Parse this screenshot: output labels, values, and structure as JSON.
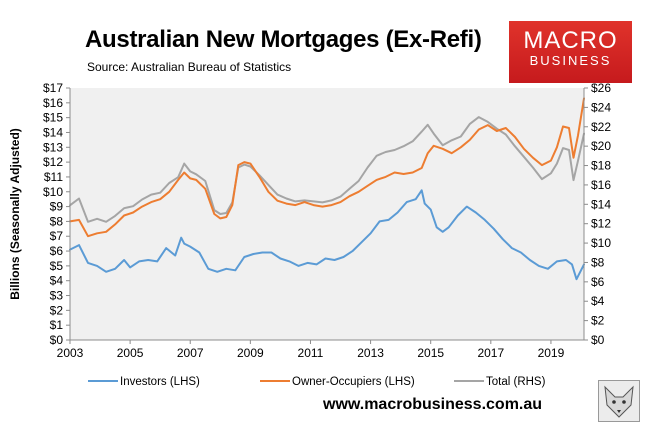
{
  "header": {
    "title": "Australian New Mortgages (Ex-Refi)",
    "subtitle": "Source: Australian Bureau of Statistics"
  },
  "logo": {
    "line1": "MACRO",
    "line2": "BUSINESS"
  },
  "footer": {
    "url": "www.macrobusiness.com.au"
  },
  "colors": {
    "investors": "#5b9bd5",
    "owner_occupiers": "#ed7d31",
    "total": "#a5a5a5",
    "plot_area": "#f0f0f0",
    "logo_red": "#d42a26"
  },
  "chart_data": {
    "type": "line",
    "title": "Australian New Mortgages (Ex-Refi)",
    "ylabel": "Billions (Seasonally Adjusted)",
    "xlim": [
      2003,
      2020.1
    ],
    "ylim_left": [
      0,
      17
    ],
    "ylim_right": [
      0,
      26
    ],
    "grid": false,
    "legend_position": "bottom",
    "x_ticks": [
      "2003",
      "2005",
      "2007",
      "2009",
      "2011",
      "2013",
      "2015",
      "2017",
      "2019"
    ],
    "left_ticks": [
      "$0",
      "$1",
      "$2",
      "$3",
      "$4",
      "$5",
      "$6",
      "$7",
      "$8",
      "$9",
      "$10",
      "$11",
      "$12",
      "$13",
      "$14",
      "$15",
      "$16",
      "$17"
    ],
    "right_ticks": [
      "$0",
      "$2",
      "$4",
      "$6",
      "$8",
      "$10",
      "$12",
      "$14",
      "$16",
      "$18",
      "$20",
      "$22",
      "$24",
      "$26"
    ],
    "series": [
      {
        "name": "Investors (LHS)",
        "axis": "left",
        "x": [
          2003.0,
          2003.3,
          2003.6,
          2003.9,
          2004.2,
          2004.5,
          2004.8,
          2005.0,
          2005.3,
          2005.6,
          2005.9,
          2006.2,
          2006.5,
          2006.7,
          2006.8,
          2007.0,
          2007.3,
          2007.6,
          2007.9,
          2008.2,
          2008.5,
          2008.8,
          2009.1,
          2009.4,
          2009.7,
          2010.0,
          2010.3,
          2010.6,
          2010.9,
          2011.2,
          2011.5,
          2011.8,
          2012.1,
          2012.4,
          2012.7,
          2013.0,
          2013.3,
          2013.6,
          2013.9,
          2014.2,
          2014.5,
          2014.7,
          2014.8,
          2015.0,
          2015.2,
          2015.4,
          2015.6,
          2015.9,
          2016.2,
          2016.5,
          2016.8,
          2017.1,
          2017.4,
          2017.7,
          2018.0,
          2018.3,
          2018.6,
          2018.9,
          2019.2,
          2019.5,
          2019.7,
          2019.85,
          2020.1
        ],
        "values": [
          6.1,
          6.4,
          5.2,
          5.0,
          4.6,
          4.8,
          5.4,
          4.9,
          5.3,
          5.4,
          5.3,
          6.2,
          5.7,
          6.9,
          6.5,
          6.3,
          5.9,
          4.8,
          4.6,
          4.8,
          4.7,
          5.6,
          5.8,
          5.9,
          5.9,
          5.5,
          5.3,
          5.0,
          5.2,
          5.1,
          5.5,
          5.4,
          5.6,
          6.0,
          6.6,
          7.2,
          8.0,
          8.1,
          8.6,
          9.3,
          9.5,
          10.1,
          9.2,
          8.8,
          7.6,
          7.3,
          7.6,
          8.4,
          9.0,
          8.6,
          8.1,
          7.5,
          6.8,
          6.2,
          5.9,
          5.4,
          5.0,
          4.8,
          5.3,
          5.4,
          5.1,
          4.1,
          5.1
        ]
      },
      {
        "name": "Owner-Occupiers (LHS)",
        "axis": "left",
        "x": [
          2003.0,
          2003.3,
          2003.6,
          2003.9,
          2004.2,
          2004.5,
          2004.8,
          2005.1,
          2005.4,
          2005.7,
          2006.0,
          2006.3,
          2006.6,
          2006.8,
          2007.0,
          2007.2,
          2007.5,
          2007.8,
          2008.0,
          2008.2,
          2008.4,
          2008.6,
          2008.8,
          2009.0,
          2009.3,
          2009.6,
          2009.9,
          2010.2,
          2010.5,
          2010.8,
          2011.1,
          2011.4,
          2011.7,
          2012.0,
          2012.3,
          2012.6,
          2012.9,
          2013.2,
          2013.5,
          2013.8,
          2014.1,
          2014.4,
          2014.7,
          2014.9,
          2015.1,
          2015.4,
          2015.7,
          2016.0,
          2016.3,
          2016.6,
          2016.9,
          2017.2,
          2017.5,
          2017.8,
          2018.1,
          2018.4,
          2018.7,
          2019.0,
          2019.2,
          2019.4,
          2019.6,
          2019.75,
          2019.9,
          2020.1
        ],
        "values": [
          8.0,
          8.1,
          7.0,
          7.2,
          7.3,
          7.8,
          8.4,
          8.6,
          9.0,
          9.3,
          9.5,
          10.0,
          10.8,
          11.3,
          10.9,
          10.8,
          10.2,
          8.5,
          8.2,
          8.3,
          9.1,
          11.8,
          12.0,
          11.9,
          11.0,
          10.0,
          9.4,
          9.2,
          9.1,
          9.3,
          9.1,
          9.0,
          9.1,
          9.3,
          9.7,
          10.0,
          10.4,
          10.8,
          11.0,
          11.3,
          11.2,
          11.3,
          11.6,
          12.6,
          13.1,
          12.9,
          12.6,
          13.0,
          13.5,
          14.2,
          14.5,
          14.1,
          14.3,
          13.7,
          12.9,
          12.3,
          11.8,
          12.1,
          13.0,
          14.4,
          14.3,
          12.3,
          13.8,
          16.3
        ]
      },
      {
        "name": "Total (RHS)",
        "axis": "right",
        "x": [
          2003.0,
          2003.3,
          2003.6,
          2003.9,
          2004.2,
          2004.5,
          2004.8,
          2005.1,
          2005.4,
          2005.7,
          2006.0,
          2006.3,
          2006.6,
          2006.8,
          2007.0,
          2007.2,
          2007.5,
          2007.8,
          2008.0,
          2008.2,
          2008.4,
          2008.6,
          2008.8,
          2009.0,
          2009.3,
          2009.6,
          2009.9,
          2010.2,
          2010.5,
          2010.8,
          2011.1,
          2011.4,
          2011.7,
          2012.0,
          2012.3,
          2012.6,
          2012.9,
          2013.2,
          2013.5,
          2013.8,
          2014.1,
          2014.4,
          2014.7,
          2014.9,
          2015.1,
          2015.4,
          2015.7,
          2016.0,
          2016.3,
          2016.6,
          2016.9,
          2017.2,
          2017.5,
          2017.8,
          2018.1,
          2018.4,
          2018.7,
          2019.0,
          2019.2,
          2019.4,
          2019.6,
          2019.75,
          2019.9,
          2020.1
        ],
        "values": [
          13.9,
          14.6,
          12.2,
          12.5,
          12.2,
          12.8,
          13.6,
          13.8,
          14.5,
          15.0,
          15.2,
          16.2,
          16.8,
          18.2,
          17.4,
          17.1,
          16.4,
          13.4,
          13.0,
          13.1,
          14.2,
          17.8,
          18.1,
          17.9,
          17.0,
          16.0,
          15.0,
          14.6,
          14.3,
          14.4,
          14.3,
          14.2,
          14.4,
          14.8,
          15.6,
          16.4,
          17.8,
          19.0,
          19.4,
          19.6,
          20.0,
          20.5,
          21.5,
          22.2,
          21.3,
          20.1,
          20.6,
          21.0,
          22.3,
          23.0,
          22.5,
          21.8,
          21.2,
          20.0,
          18.9,
          17.8,
          16.6,
          17.2,
          18.2,
          19.8,
          19.6,
          16.5,
          18.5,
          21.3
        ]
      }
    ]
  }
}
